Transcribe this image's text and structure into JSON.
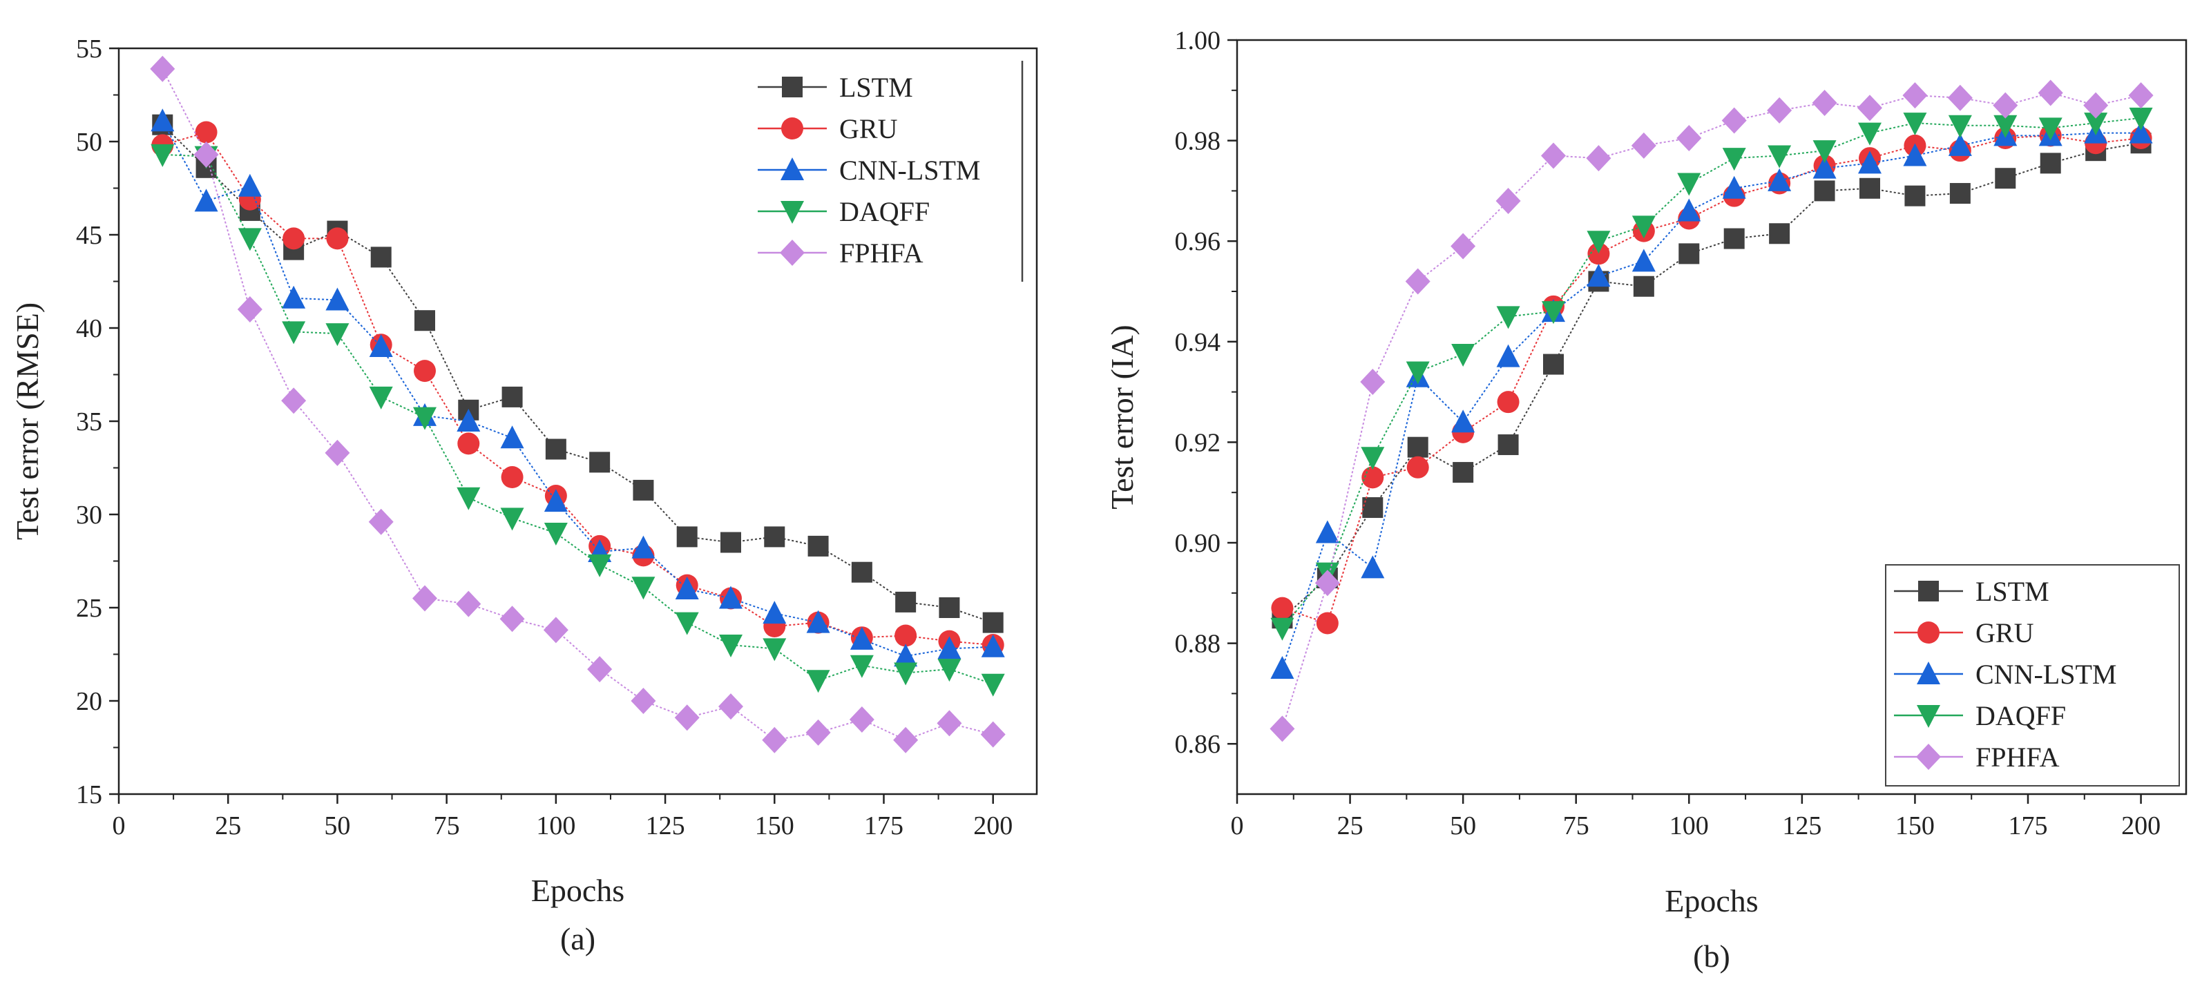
{
  "chart_data": [
    {
      "type": "line",
      "panel_label": "(a)",
      "xlabel": "Epochs",
      "ylabel": "Test error (RMSE)",
      "xlim": [
        0,
        210
      ],
      "ylim": [
        15,
        55
      ],
      "xticks": [
        0,
        25,
        50,
        75,
        100,
        125,
        150,
        175,
        200
      ],
      "yticks": [
        15,
        20,
        25,
        30,
        35,
        40,
        45,
        50,
        55
      ],
      "legend_position": "top-right",
      "x": [
        10,
        20,
        30,
        40,
        50,
        60,
        70,
        80,
        90,
        100,
        110,
        120,
        130,
        140,
        150,
        160,
        170,
        180,
        190,
        200
      ],
      "series": [
        {
          "name": "LSTM",
          "color": "#404040",
          "marker": "square",
          "values": [
            50.9,
            48.6,
            46.3,
            44.2,
            45.2,
            43.8,
            40.4,
            35.6,
            36.3,
            33.5,
            32.8,
            31.3,
            28.8,
            28.5,
            28.8,
            28.3,
            26.9,
            25.3,
            25.0,
            24.2
          ]
        },
        {
          "name": "GRU",
          "color": "#e8363a",
          "marker": "circle",
          "values": [
            49.8,
            50.5,
            46.9,
            44.8,
            44.8,
            39.1,
            37.7,
            33.8,
            32.0,
            31.0,
            28.3,
            27.8,
            26.2,
            25.5,
            24.0,
            24.2,
            23.4,
            23.5,
            23.2,
            23.0
          ]
        },
        {
          "name": "CNN-LSTM",
          "color": "#1a64d8",
          "marker": "triangle-up",
          "values": [
            51.1,
            46.8,
            47.6,
            41.6,
            41.5,
            39.0,
            35.3,
            35.0,
            34.1,
            30.7,
            28.0,
            28.2,
            26.0,
            25.5,
            24.7,
            24.2,
            23.3,
            22.4,
            22.8,
            22.9
          ]
        },
        {
          "name": "DAQFF",
          "color": "#22a85a",
          "marker": "triangle-down",
          "values": [
            49.3,
            49.2,
            44.8,
            39.8,
            39.7,
            36.3,
            35.2,
            30.9,
            29.8,
            29.0,
            27.3,
            26.1,
            24.2,
            23.0,
            22.8,
            21.1,
            21.9,
            21.5,
            21.7,
            20.9
          ]
        },
        {
          "name": "FPHFA",
          "color": "#c78ae0",
          "marker": "diamond",
          "values": [
            53.9,
            49.3,
            41.0,
            36.1,
            33.3,
            29.6,
            25.5,
            25.2,
            24.4,
            23.8,
            21.7,
            20.0,
            19.1,
            19.7,
            17.9,
            18.3,
            19.0,
            17.9,
            18.8,
            18.2
          ]
        }
      ]
    },
    {
      "type": "line",
      "panel_label": "(b)",
      "xlabel": "Epochs",
      "ylabel": "Test error (IA)",
      "xlim": [
        0,
        210
      ],
      "ylim": [
        0.85,
        1.0
      ],
      "xticks": [
        0,
        25,
        50,
        75,
        100,
        125,
        150,
        175,
        200
      ],
      "yticks": [
        0.86,
        0.88,
        0.9,
        0.92,
        0.94,
        0.96,
        0.98,
        1.0
      ],
      "ytick_labels": [
        "0.86",
        "0.88",
        "0.90",
        "0.92",
        "0.94",
        "0.96",
        "0.98",
        "1.00"
      ],
      "legend_position": "bottom-right",
      "x": [
        10,
        20,
        30,
        40,
        50,
        60,
        70,
        80,
        90,
        100,
        110,
        120,
        130,
        140,
        150,
        160,
        170,
        180,
        190,
        200
      ],
      "series": [
        {
          "name": "LSTM",
          "color": "#404040",
          "marker": "square",
          "values": [
            0.885,
            0.893,
            0.907,
            0.919,
            0.914,
            0.9195,
            0.9355,
            0.952,
            0.951,
            0.9575,
            0.9605,
            0.9615,
            0.97,
            0.9705,
            0.969,
            0.9695,
            0.9725,
            0.9755,
            0.978,
            0.9795
          ]
        },
        {
          "name": "GRU",
          "color": "#e8363a",
          "marker": "circle",
          "values": [
            0.887,
            0.884,
            0.913,
            0.915,
            0.922,
            0.928,
            0.947,
            0.9575,
            0.962,
            0.9645,
            0.969,
            0.9715,
            0.975,
            0.9765,
            0.979,
            0.978,
            0.9805,
            0.981,
            0.9795,
            0.9805
          ]
        },
        {
          "name": "CNN-LSTM",
          "color": "#1a64d8",
          "marker": "triangle-up",
          "values": [
            0.875,
            0.902,
            0.895,
            0.933,
            0.924,
            0.937,
            0.946,
            0.953,
            0.956,
            0.966,
            0.9705,
            0.972,
            0.9745,
            0.9755,
            0.977,
            0.979,
            0.981,
            0.981,
            0.9815,
            0.9815
          ]
        },
        {
          "name": "DAQFF",
          "color": "#22a85a",
          "marker": "triangle-down",
          "values": [
            0.883,
            0.894,
            0.917,
            0.934,
            0.9375,
            0.945,
            0.946,
            0.96,
            0.963,
            0.9715,
            0.9765,
            0.977,
            0.978,
            0.9815,
            0.9835,
            0.983,
            0.983,
            0.9825,
            0.9835,
            0.9845
          ]
        },
        {
          "name": "FPHFA",
          "color": "#c78ae0",
          "marker": "diamond",
          "values": [
            0.863,
            0.892,
            0.932,
            0.952,
            0.959,
            0.968,
            0.977,
            0.9765,
            0.979,
            0.9805,
            0.984,
            0.986,
            0.9875,
            0.9865,
            0.989,
            0.9885,
            0.987,
            0.9895,
            0.987,
            0.989
          ]
        }
      ]
    }
  ]
}
